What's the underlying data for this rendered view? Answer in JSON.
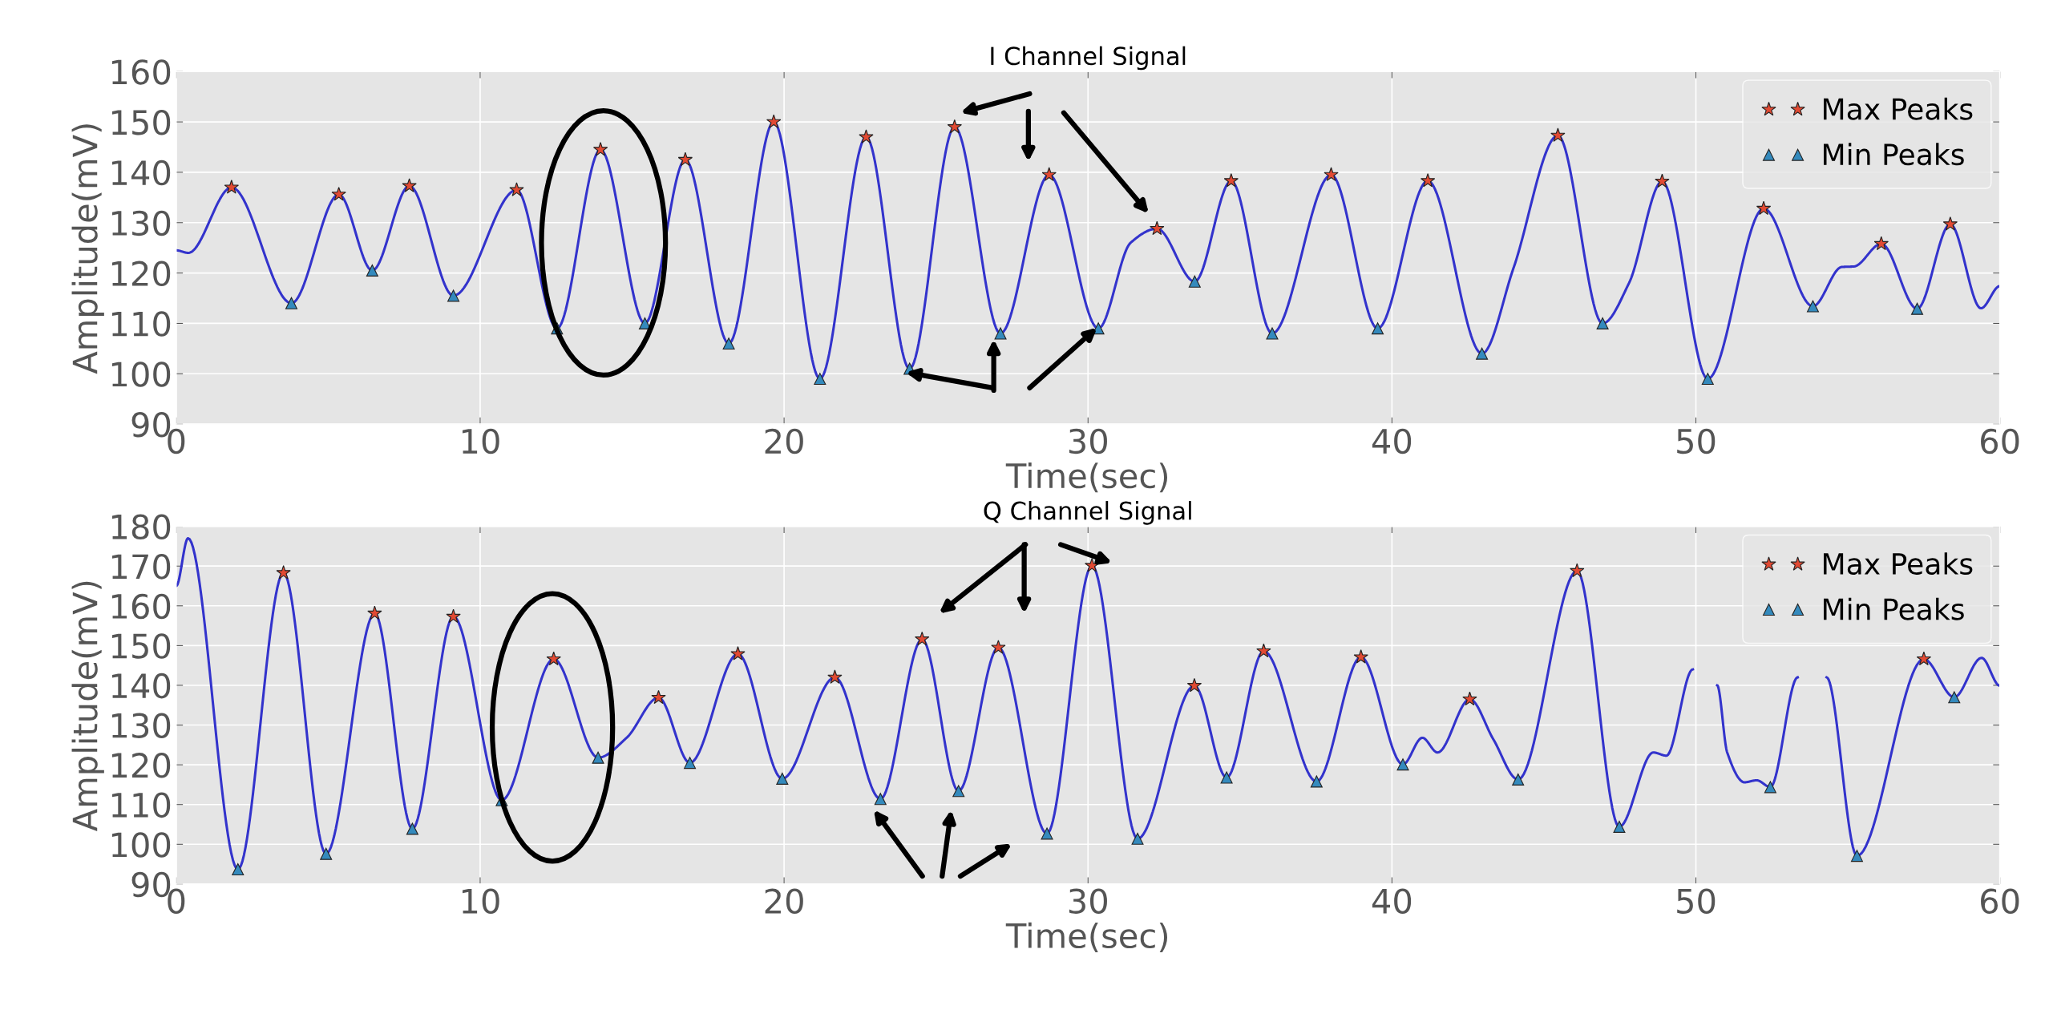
{
  "chart_data": [
    {
      "type": "line",
      "title": "I Channel Signal",
      "xlabel": "Time(sec)",
      "ylabel": "Amplitude(mV)",
      "xlim": [
        0,
        60
      ],
      "ylim": [
        90,
        160
      ],
      "xticks": [
        0,
        10,
        20,
        30,
        40,
        50,
        60
      ],
      "yticks": [
        90,
        100,
        110,
        120,
        130,
        140,
        150,
        160
      ],
      "grid": true,
      "legend": "top right",
      "series": [
        {
          "type": "line",
          "color": "#3333cc",
          "marker": "none",
          "line_style": "solid",
          "x": [
            0,
            0.4,
            1.82,
            3.79,
            5.35,
            6.45,
            7.67,
            9.12,
            11.2,
            12.53,
            13.96,
            15.42,
            16.75,
            18.18,
            19.66,
            21.18,
            22.7,
            24.13,
            25.61,
            27.12,
            28.72,
            30.34,
            31.4,
            32.27,
            33.51,
            34.71,
            36.06,
            38.0,
            39.53,
            41.18,
            42.96,
            44.0,
            45.46,
            46.93,
            47.8,
            48.89,
            50.39,
            52.23,
            53.85,
            54.8,
            55.2,
            56.1,
            57.28,
            58.37,
            59.38,
            60
          ],
          "values": [
            124.5,
            124,
            137,
            114,
            135.6,
            120.5,
            137.3,
            115.5,
            136.5,
            109,
            144.5,
            110,
            142.5,
            106,
            150,
            99,
            147,
            101,
            149,
            108,
            139.5,
            109,
            126,
            128.8,
            118.3,
            138.3,
            108,
            139.5,
            109,
            138.3,
            104,
            121,
            147.3,
            110,
            118,
            138.2,
            99,
            132.8,
            113.4,
            121.2,
            121.3,
            125.8,
            112.9,
            129.7,
            113,
            117.4
          ]
        },
        {
          "type": "scatter",
          "name": "Max Peaks",
          "color": "#e24a33",
          "marker": "star",
          "x": [
            1.82,
            5.35,
            7.67,
            11.2,
            13.96,
            16.75,
            19.66,
            22.7,
            25.61,
            28.72,
            32.27,
            34.71,
            38.0,
            41.18,
            45.46,
            48.89,
            52.23,
            56.1,
            58.37
          ],
          "values": [
            137,
            135.6,
            137.3,
            136.5,
            144.5,
            142.5,
            150,
            147,
            149,
            139.5,
            128.8,
            138.3,
            139.5,
            138.3,
            147.3,
            138.2,
            132.8,
            125.8,
            129.7
          ]
        },
        {
          "type": "scatter",
          "name": "Min Peaks",
          "color": "#348abd",
          "marker": "triangle",
          "x": [
            3.79,
            6.45,
            9.12,
            12.53,
            15.42,
            18.18,
            21.18,
            24.13,
            27.12,
            30.34,
            33.51,
            36.06,
            39.53,
            42.96,
            46.93,
            50.39,
            53.85,
            57.28
          ],
          "values": [
            114,
            120.5,
            115.5,
            109,
            110,
            106,
            99,
            101,
            108,
            109,
            118.3,
            108,
            109,
            104,
            110,
            99,
            113.4,
            112.9
          ]
        }
      ]
    },
    {
      "type": "line",
      "title": "Q Channel Signal",
      "xlabel": "Time(sec)",
      "ylabel": "Amplitude(mV)",
      "xlim": [
        0,
        60
      ],
      "ylim": [
        90,
        180
      ],
      "xticks": [
        0,
        10,
        20,
        30,
        40,
        50,
        60
      ],
      "yticks": [
        90,
        100,
        110,
        120,
        130,
        140,
        150,
        160,
        170,
        180
      ],
      "grid": true,
      "legend": "top right",
      "series": [
        {
          "type": "line",
          "color": "#3333cc",
          "marker": "none",
          "line_style": "solid",
          "x": [
            0,
            0.39,
            2.03,
            3.53,
            4.93,
            6.53,
            7.77,
            9.12,
            10.71,
            12.42,
            13.88,
            14.82,
            15.87,
            16.9,
            18.48,
            19.94,
            21.67,
            23.17,
            24.54,
            25.74,
            27.05,
            28.65,
            30.13,
            31.63,
            33.5,
            34.56,
            35.78,
            37.52,
            38.98,
            40.36,
            41.0,
            41.5,
            42.56,
            43.33,
            44.15,
            46.09,
            47.48,
            48.6,
            49.03,
            49.9,
            50.3,
            50.7,
            51.03,
            51.6,
            52.0,
            52.45,
            53.35,
            53.8,
            54.3,
            55.3,
            57.5,
            58.5,
            59.4,
            60
          ],
          "values": [
            165,
            177,
            93.7,
            168.3,
            97.6,
            158.1,
            103.9,
            157.3,
            111.1,
            146.6,
            121.8,
            126.8,
            136.9,
            120.5,
            147.9,
            116.5,
            142,
            111.4,
            151.6,
            113.4,
            149.5,
            102.7,
            170.1,
            101.4,
            139.9,
            116.8,
            148.6,
            115.8,
            147.1,
            120.1,
            126.8,
            123.1,
            136.5,
            126.5,
            116.3,
            168.8,
            104.4,
            123.1,
            122.3,
            144,
            null,
            140,
            123.1,
            115.6,
            116.1,
            114.4,
            142,
            null,
            142,
            97.1,
            146.6,
            137,
            146.9,
            139.9
          ]
        },
        {
          "type": "scatter",
          "name": "Max Peaks",
          "color": "#e24a33",
          "marker": "star",
          "x": [
            3.53,
            6.53,
            9.12,
            12.42,
            15.87,
            18.48,
            21.67,
            24.54,
            27.05,
            30.13,
            33.5,
            35.78,
            38.98,
            42.56,
            46.09,
            57.5
          ],
          "values": [
            168.3,
            158.1,
            157.3,
            146.6,
            136.9,
            147.9,
            142,
            151.6,
            149.5,
            170.1,
            139.9,
            148.6,
            147.1,
            136.5,
            168.8,
            146.6
          ]
        },
        {
          "type": "scatter",
          "name": "Min Peaks",
          "color": "#348abd",
          "marker": "triangle",
          "x": [
            2.03,
            4.93,
            7.77,
            10.71,
            13.88,
            16.9,
            19.94,
            23.17,
            25.74,
            28.65,
            31.63,
            34.56,
            37.52,
            40.36,
            44.15,
            47.48,
            52.45,
            55.3,
            58.5
          ],
          "values": [
            93.7,
            97.6,
            103.9,
            111.1,
            121.8,
            120.5,
            116.5,
            111.4,
            113.4,
            102.7,
            101.4,
            116.8,
            115.8,
            120.1,
            116.3,
            104.4,
            114.4,
            97.1,
            137
          ]
        }
      ]
    }
  ]
}
